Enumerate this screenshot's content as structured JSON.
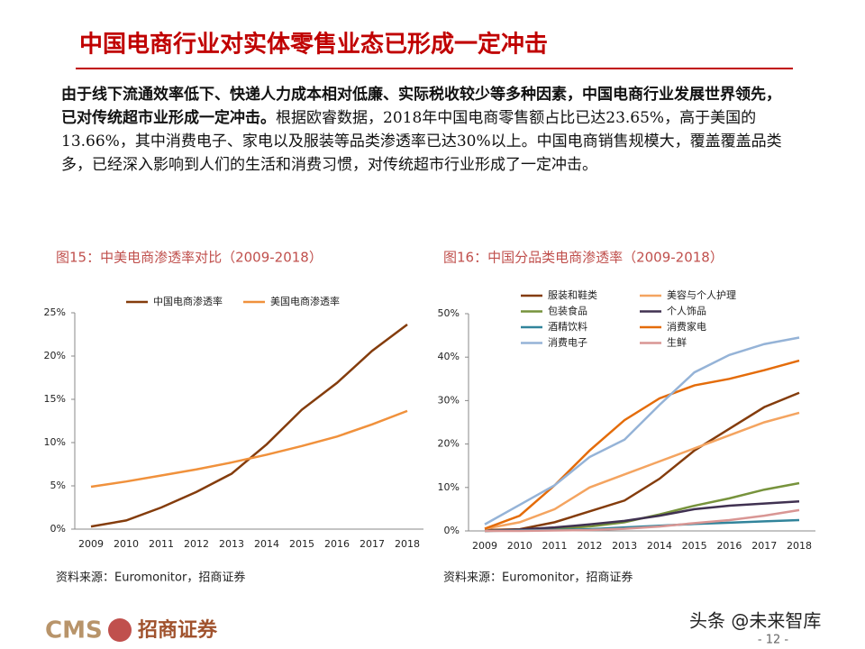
{
  "header": {
    "title": "中国电商行业对实体零售业态已形成一定冲击"
  },
  "body": {
    "bold": "由于线下流通效率低下、快递人力成本相对低廉、实际税收较少等多种因素，中国电商行业发展世界领先，已对传统超市业形成一定冲击。",
    "text": "根据欧睿数据，2018年中国电商零售额占比已达23.65%，高于美国的13.66%，其中消费电子、家电以及服装等品类渗透率已达30%以上。中国电商销售规模大，覆盖覆盖品类多，已经深入影响到人们的生活和消费习惯，对传统超市行业形成了一定冲击。"
  },
  "chart_data": [
    {
      "type": "line",
      "title": "图15：中美电商渗透率对比（2009-2018）",
      "source": "资料来源：Euromonitor，招商证券",
      "categories": [
        "2009",
        "2010",
        "2011",
        "2012",
        "2013",
        "2014",
        "2015",
        "2016",
        "2017",
        "2018"
      ],
      "series": [
        {
          "name": "中国电商渗透率",
          "color": "#843c0c",
          "values": [
            0.3,
            1.0,
            2.5,
            4.3,
            6.4,
            9.8,
            13.8,
            16.9,
            20.6,
            23.65
          ]
        },
        {
          "name": "美国电商渗透率",
          "color": "#f0913c",
          "values": [
            4.9,
            5.5,
            6.2,
            6.9,
            7.7,
            8.6,
            9.6,
            10.7,
            12.1,
            13.66
          ]
        }
      ],
      "ylim": [
        0,
        25
      ],
      "yticks": [
        {
          "value": 0,
          "label": "0%"
        },
        {
          "value": 5,
          "label": "5%"
        },
        {
          "value": 10,
          "label": "10%"
        },
        {
          "value": 15,
          "label": "15%"
        },
        {
          "value": 20,
          "label": "20%"
        },
        {
          "value": 25,
          "label": "25%"
        }
      ],
      "legend": "top"
    },
    {
      "type": "line",
      "title": "图16：中国分品类电商渗透率（2009-2018）",
      "source": "资料来源：Euromonitor，招商证券",
      "categories": [
        "2009",
        "2010",
        "2011",
        "2012",
        "2013",
        "2014",
        "2015",
        "2016",
        "2017",
        "2018"
      ],
      "series": [
        {
          "name": "服装和鞋类",
          "color": "#843c0c",
          "values": [
            0.2,
            0.4,
            2,
            4.5,
            7,
            12,
            18.5,
            23.5,
            28.5,
            31.8
          ]
        },
        {
          "name": "美容与个人护理",
          "color": "#f4a460",
          "values": [
            0.5,
            2,
            5,
            10,
            13,
            16,
            19,
            22,
            25,
            27.2
          ]
        },
        {
          "name": "包装食品",
          "color": "#77933c",
          "values": [
            0,
            0.2,
            0.5,
            1,
            2,
            3.8,
            5.8,
            7.5,
            9.5,
            11
          ]
        },
        {
          "name": "个人饰品",
          "color": "#403151",
          "values": [
            0,
            0.3,
            0.8,
            1.5,
            2.3,
            3.5,
            5,
            5.8,
            6.3,
            6.8
          ]
        },
        {
          "name": "酒精饮料",
          "color": "#31849b",
          "values": [
            0,
            0.1,
            0.2,
            0.4,
            0.8,
            1.2,
            1.6,
            1.9,
            2.2,
            2.5
          ]
        },
        {
          "name": "消费家电",
          "color": "#e46c0a",
          "values": [
            0.5,
            3.5,
            10.5,
            18.5,
            25.5,
            30.5,
            33.5,
            35,
            37,
            39.2
          ]
        },
        {
          "name": "消费电子",
          "color": "#95b3d7",
          "values": [
            1.5,
            6,
            10.5,
            17,
            21,
            29,
            36.5,
            40.5,
            43,
            44.5
          ]
        },
        {
          "name": "生鲜",
          "color": "#d99694",
          "values": [
            0,
            0,
            0.1,
            0.2,
            0.5,
            1,
            1.8,
            2.5,
            3.5,
            4.8
          ]
        }
      ],
      "ylim": [
        0,
        50
      ],
      "yticks": [
        {
          "value": 0,
          "label": "0%"
        },
        {
          "value": 10,
          "label": "10%"
        },
        {
          "value": 20,
          "label": "20%"
        },
        {
          "value": 30,
          "label": "30%"
        },
        {
          "value": 40,
          "label": "40%"
        },
        {
          "value": 50,
          "label": "50%"
        }
      ],
      "legend": "top-left"
    }
  ],
  "footer": {
    "logo": "CMS",
    "company": "招商证券",
    "page": "- 12 -",
    "watermark": "头条 @未来智库"
  }
}
